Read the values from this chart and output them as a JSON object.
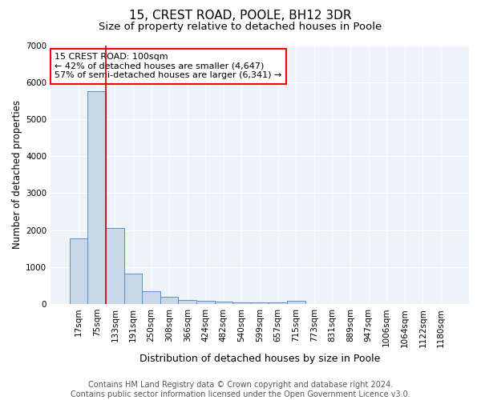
{
  "title": "15, CREST ROAD, POOLE, BH12 3DR",
  "subtitle": "Size of property relative to detached houses in Poole",
  "xlabel": "Distribution of detached houses by size in Poole",
  "ylabel": "Number of detached properties",
  "categories": [
    "17sqm",
    "75sqm",
    "133sqm",
    "191sqm",
    "250sqm",
    "308sqm",
    "366sqm",
    "424sqm",
    "482sqm",
    "540sqm",
    "599sqm",
    "657sqm",
    "715sqm",
    "773sqm",
    "831sqm",
    "889sqm",
    "947sqm",
    "1006sqm",
    "1064sqm",
    "1122sqm",
    "1180sqm"
  ],
  "values": [
    1780,
    5750,
    2050,
    820,
    340,
    200,
    110,
    80,
    70,
    55,
    45,
    40,
    80,
    0,
    0,
    0,
    0,
    0,
    0,
    0,
    0
  ],
  "bar_color": "#c8d8e8",
  "bar_edge_color": "#5b8fc9",
  "reference_line_color": "#cc0000",
  "annotation_line1": "15 CREST ROAD: 100sqm",
  "annotation_line2": "← 42% of detached houses are smaller (4,647)",
  "annotation_line3": "57% of semi-detached houses are larger (6,341) →",
  "ylim": [
    0,
    7000
  ],
  "yticks": [
    0,
    1000,
    2000,
    3000,
    4000,
    5000,
    6000,
    7000
  ],
  "background_color": "#eef2f9",
  "footer_line1": "Contains HM Land Registry data © Crown copyright and database right 2024.",
  "footer_line2": "Contains public sector information licensed under the Open Government Licence v3.0.",
  "title_fontsize": 11,
  "subtitle_fontsize": 9.5,
  "xlabel_fontsize": 9,
  "ylabel_fontsize": 8.5,
  "tick_fontsize": 7.5,
  "annotation_fontsize": 8,
  "footer_fontsize": 7
}
